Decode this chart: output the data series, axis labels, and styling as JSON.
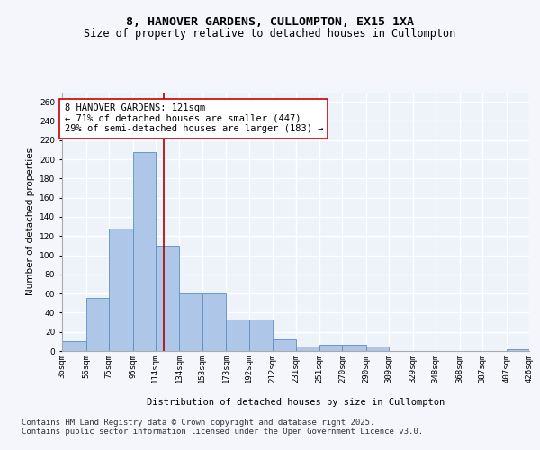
{
  "title_line1": "8, HANOVER GARDENS, CULLOMPTON, EX15 1XA",
  "title_line2": "Size of property relative to detached houses in Cullompton",
  "xlabel": "Distribution of detached houses by size in Cullompton",
  "ylabel": "Number of detached properties",
  "bar_values": [
    10,
    55,
    128,
    208,
    110,
    60,
    60,
    33,
    33,
    12,
    5,
    7,
    7,
    5,
    0,
    0,
    0,
    0,
    0,
    2
  ],
  "bin_labels": [
    "36sqm",
    "56sqm",
    "75sqm",
    "95sqm",
    "114sqm",
    "134sqm",
    "153sqm",
    "173sqm",
    "192sqm",
    "212sqm",
    "231sqm",
    "251sqm",
    "270sqm",
    "290sqm",
    "309sqm",
    "329sqm",
    "348sqm",
    "368sqm",
    "387sqm",
    "407sqm",
    "426sqm"
  ],
  "bar_color": "#aec6e8",
  "bar_edge_color": "#5a8fc2",
  "background_color": "#eef2f9",
  "grid_color": "#d0d8e8",
  "fig_bg_color": "#f4f6fb",
  "ylim": [
    0,
    270
  ],
  "yticks": [
    0,
    20,
    40,
    60,
    80,
    100,
    120,
    140,
    160,
    180,
    200,
    220,
    240,
    260
  ],
  "property_size_sqm": 121,
  "bin_edges": [
    36,
    56,
    75,
    95,
    114,
    134,
    153,
    173,
    192,
    212,
    231,
    251,
    270,
    290,
    309,
    329,
    348,
    368,
    387,
    407,
    426
  ],
  "vline_color": "#aa0000",
  "annotation_text": "8 HANOVER GARDENS: 121sqm\n← 71% of detached houses are smaller (447)\n29% of semi-detached houses are larger (183) →",
  "annotation_box_color": "#ffffff",
  "annotation_box_edge": "#cc0000",
  "footer_text": "Contains HM Land Registry data © Crown copyright and database right 2025.\nContains public sector information licensed under the Open Government Licence v3.0.",
  "title_fontsize": 9.5,
  "subtitle_fontsize": 8.5,
  "annotation_fontsize": 7.5,
  "axis_label_fontsize": 7.5,
  "tick_fontsize": 6.5,
  "footer_fontsize": 6.5
}
